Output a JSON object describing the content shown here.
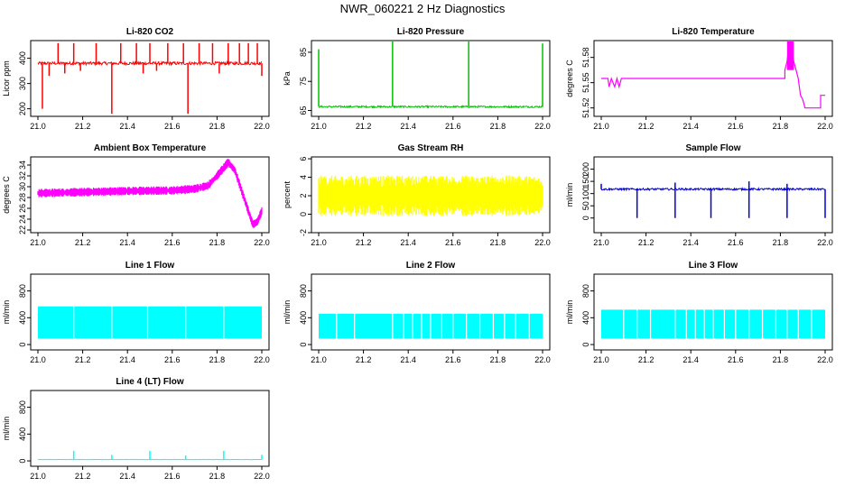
{
  "title": "NWR_060221 2 Hz Diagnostics",
  "chart_data": [
    {
      "id": "co2",
      "type": "line",
      "title": "Li-820 CO2",
      "ylabel": "Licor ppm",
      "color": "#ff0000",
      "xlim": [
        21.0,
        22.0
      ],
      "ylim": [
        170,
        470
      ],
      "yticks": [
        200,
        300,
        400
      ],
      "xticks": [
        "21.0",
        "21.2",
        "21.4",
        "21.6",
        "21.8",
        "22.0"
      ],
      "series": [
        {
          "name": "CO2",
          "baseline": 380,
          "noise": 6,
          "spikes": [
            [
              21.02,
              200
            ],
            [
              21.05,
              330
            ],
            [
              21.09,
              460
            ],
            [
              21.12,
              340
            ],
            [
              21.16,
              460
            ],
            [
              21.19,
              350
            ],
            [
              21.26,
              460
            ],
            [
              21.33,
              180
            ],
            [
              21.37,
              460
            ],
            [
              21.44,
              460
            ],
            [
              21.47,
              340
            ],
            [
              21.5,
              460
            ],
            [
              21.53,
              350
            ],
            [
              21.58,
              460
            ],
            [
              21.65,
              460
            ],
            [
              21.67,
              180
            ],
            [
              21.72,
              460
            ],
            [
              21.78,
              460
            ],
            [
              21.81,
              340
            ],
            [
              21.85,
              460
            ],
            [
              21.9,
              460
            ],
            [
              21.94,
              460
            ],
            [
              21.98,
              460
            ],
            [
              22.0,
              330
            ]
          ]
        }
      ]
    },
    {
      "id": "pressure",
      "type": "line",
      "title": "Li-820 Pressure",
      "ylabel": "kPa",
      "color": "#00c000",
      "xlim": [
        21.0,
        22.0
      ],
      "ylim": [
        63,
        89
      ],
      "yticks": [
        65,
        75,
        85
      ],
      "xticks": [
        "21.0",
        "21.2",
        "21.4",
        "21.6",
        "21.8",
        "22.0"
      ],
      "series": [
        {
          "name": "Pressure",
          "baseline": 66.3,
          "noise": 0.3,
          "spikes": [
            [
              21.0,
              86
            ],
            [
              21.33,
              89
            ],
            [
              21.67,
              89
            ],
            [
              22.0,
              88
            ]
          ]
        }
      ]
    },
    {
      "id": "temp",
      "type": "line",
      "title": "Li-820 Temperature",
      "ylabel": "degrees C",
      "color": "#ff00ff",
      "xlim": [
        21.0,
        22.0
      ],
      "ylim": [
        51.51,
        51.6
      ],
      "yticks": [
        51.52,
        51.55,
        51.58
      ],
      "xticks": [
        "21.0",
        "21.2",
        "21.4",
        "21.6",
        "21.8",
        "22.0"
      ],
      "series": [
        {
          "name": "Temp",
          "segments": [
            [
              21.0,
              51.555
            ],
            [
              21.03,
              51.555
            ],
            [
              21.035,
              51.545
            ],
            [
              21.045,
              51.555
            ],
            [
              21.06,
              51.545
            ],
            [
              21.07,
              51.555
            ],
            [
              21.08,
              51.545
            ],
            [
              21.09,
              51.555
            ],
            [
              21.82,
              51.555
            ],
            [
              21.82,
              51.565
            ],
            [
              21.83,
              51.575
            ],
            [
              21.84,
              51.6
            ],
            [
              21.86,
              51.575
            ],
            [
              21.87,
              51.565
            ],
            [
              21.88,
              51.555
            ],
            [
              21.89,
              51.535
            ],
            [
              21.9,
              51.53
            ],
            [
              21.91,
              51.52
            ],
            [
              21.98,
              51.52
            ],
            [
              21.98,
              51.535
            ],
            [
              22.0,
              51.535
            ]
          ]
        }
      ]
    },
    {
      "id": "ambient",
      "type": "band",
      "title": "Ambient Box Temperature",
      "ylabel": "degrees C",
      "color": "#ff00ff",
      "xlim": [
        21.0,
        22.0
      ],
      "ylim": [
        21.5,
        35.5
      ],
      "yticks": [
        22,
        24,
        26,
        28,
        30,
        32,
        34
      ],
      "xticks": [
        "21.0",
        "21.2",
        "21.4",
        "21.6",
        "21.8",
        "22.0"
      ],
      "series": [
        {
          "name": "Ambient",
          "center": [
            [
              21.0,
              28.8
            ],
            [
              21.2,
              29.0
            ],
            [
              21.4,
              29.2
            ],
            [
              21.6,
              29.3
            ],
            [
              21.7,
              29.6
            ],
            [
              21.76,
              30.2
            ],
            [
              21.8,
              32.0
            ],
            [
              21.85,
              34.5
            ],
            [
              21.88,
              33.0
            ],
            [
              21.92,
              28.0
            ],
            [
              21.96,
              23.0
            ],
            [
              21.98,
              23.5
            ],
            [
              22.0,
              25.5
            ]
          ],
          "halfwidth": 0.8
        }
      ]
    },
    {
      "id": "rh",
      "type": "band",
      "title": "Gas Stream RH",
      "ylabel": "percent",
      "color": "#ffff00",
      "xlim": [
        21.0,
        22.0
      ],
      "ylim": [
        -2,
        6.2
      ],
      "yticks": [
        -2,
        0,
        2,
        4,
        6
      ],
      "xticks": [
        "21.0",
        "21.2",
        "21.4",
        "21.6",
        "21.8",
        "22.0"
      ],
      "series": [
        {
          "name": "RH",
          "center": [
            [
              21.0,
              2.0
            ],
            [
              22.0,
              2.0
            ]
          ],
          "halfwidth": 2.2
        }
      ]
    },
    {
      "id": "sample",
      "type": "line",
      "title": "Sample Flow",
      "ylabel": "ml/min",
      "color": "#0000dd",
      "xlim": [
        21.0,
        22.0
      ],
      "ylim": [
        -60,
        250
      ],
      "yticks": [
        0,
        50,
        100,
        150,
        200
      ],
      "xticks": [
        "21.0",
        "21.2",
        "21.4",
        "21.6",
        "21.8",
        "22.0"
      ],
      "series": [
        {
          "name": "Sample",
          "baseline": 118,
          "noise": 4,
          "spikes": [
            [
              21.0,
              140
            ],
            [
              21.16,
              0
            ],
            [
              21.33,
              0
            ],
            [
              21.33,
              145
            ],
            [
              21.49,
              0
            ],
            [
              21.66,
              0
            ],
            [
              21.66,
              150
            ],
            [
              21.83,
              0
            ],
            [
              21.83,
              140
            ],
            [
              22.0,
              0
            ]
          ]
        }
      ]
    },
    {
      "id": "line1",
      "type": "bars",
      "title": "Line 1 Flow",
      "ylabel": "ml/min",
      "color": "#00ffff",
      "xlim": [
        21.0,
        22.0
      ],
      "ylim": [
        -80,
        1050
      ],
      "yticks": [
        0,
        400,
        800
      ],
      "xticks": [
        "21.0",
        "21.2",
        "21.4",
        "21.6",
        "21.8",
        "22.0"
      ],
      "series": [
        {
          "name": "Line1",
          "low": 90,
          "high": 570,
          "gaps": [
            21.16,
            21.33,
            21.49,
            21.66,
            21.83
          ]
        }
      ]
    },
    {
      "id": "line2",
      "type": "bars",
      "title": "Line 2 Flow",
      "ylabel": "ml/min",
      "color": "#00ffff",
      "xlim": [
        21.0,
        22.0
      ],
      "ylim": [
        -80,
        1050
      ],
      "yticks": [
        0,
        400,
        800
      ],
      "xticks": [
        "21.0",
        "21.2",
        "21.4",
        "21.6",
        "21.8",
        "22.0"
      ],
      "series": [
        {
          "name": "Line2",
          "low": 90,
          "high": 460,
          "gaps": [
            21.08,
            21.16,
            21.33,
            21.38,
            21.42,
            21.46,
            21.5,
            21.55,
            21.6,
            21.66,
            21.72,
            21.78,
            21.83,
            21.88,
            21.94
          ]
        }
      ]
    },
    {
      "id": "line3",
      "type": "bars",
      "title": "Line 3 Flow",
      "ylabel": "ml/min",
      "color": "#00ffff",
      "xlim": [
        21.0,
        22.0
      ],
      "ylim": [
        -80,
        1050
      ],
      "yticks": [
        0,
        400,
        800
      ],
      "xticks": [
        "21.0",
        "21.2",
        "21.4",
        "21.6",
        "21.8",
        "22.0"
      ],
      "series": [
        {
          "name": "Line3",
          "low": 90,
          "high": 520,
          "gaps": [
            21.1,
            21.16,
            21.22,
            21.33,
            21.38,
            21.42,
            21.46,
            21.5,
            21.55,
            21.6,
            21.66,
            21.72,
            21.78,
            21.83,
            21.88,
            21.94
          ]
        }
      ]
    },
    {
      "id": "line4",
      "type": "line",
      "title": "Line 4 (LT) Flow",
      "ylabel": "ml/min",
      "color": "#00ffff",
      "xlim": [
        21.0,
        22.0
      ],
      "ylim": [
        -80,
        1050
      ],
      "yticks": [
        0,
        400,
        800
      ],
      "xticks": [
        "21.0",
        "21.2",
        "21.4",
        "21.6",
        "21.8",
        "22.0"
      ],
      "series": [
        {
          "name": "Line4",
          "baseline": 20,
          "noise": 2,
          "spikes": [
            [
              21.16,
              150
            ],
            [
              21.33,
              90
            ],
            [
              21.5,
              150
            ],
            [
              21.66,
              80
            ],
            [
              21.83,
              150
            ],
            [
              22.0,
              90
            ]
          ]
        }
      ]
    }
  ]
}
